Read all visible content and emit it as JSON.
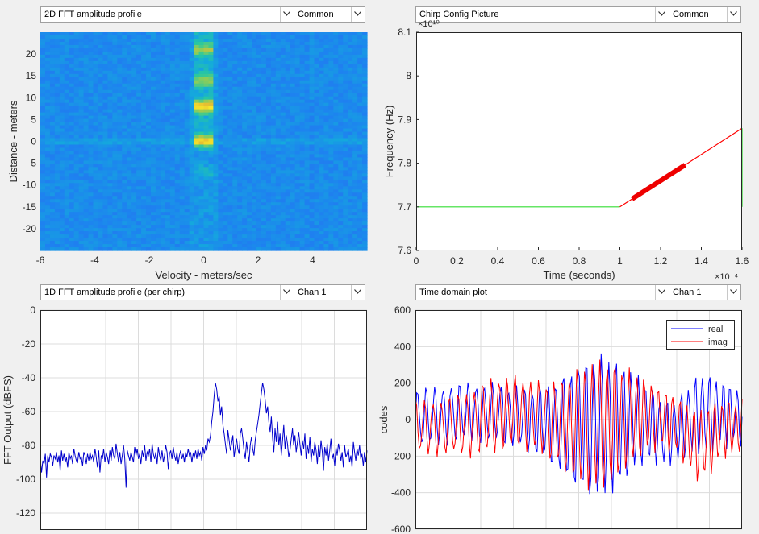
{
  "dropdowns": {
    "tl_main": "2D FFT amplitude profile",
    "tl_sub": "Common",
    "tr_main": "Chirp Config Picture",
    "tr_sub": "Common",
    "bl_main": "1D FFT amplitude profile (per chirp)",
    "bl_sub": "Chan 1",
    "br_main": "Time domain plot",
    "br_sub": "Chan 1"
  },
  "icons": {
    "dropdown_arrow": "chevron-down-icon"
  },
  "chart_data": [
    {
      "type": "heatmap",
      "xlabel": "Velocity - meters/sec",
      "ylabel": "Distance - meters",
      "xlim": [
        -6,
        6
      ],
      "ylim": [
        -25,
        25
      ],
      "xticks": [
        -6,
        -4,
        -2,
        0,
        2,
        4
      ],
      "yticks": [
        20,
        15,
        10,
        5,
        0,
        -5,
        -10,
        -15,
        -20
      ],
      "colormap": "parula",
      "peaks": [
        {
          "velocity": 0,
          "distance": 0,
          "level": "high"
        },
        {
          "velocity": 0,
          "distance": 8,
          "level": "high"
        },
        {
          "velocity": 0,
          "distance": 14,
          "level": "medium"
        },
        {
          "velocity": 0,
          "distance": 21,
          "level": "medium"
        },
        {
          "velocity": 0,
          "distance": -7,
          "level": "low"
        }
      ]
    },
    {
      "type": "line",
      "xlabel": "Time (seconds)",
      "ylabel": "Frequency (Hz)",
      "x_exponent": "×10⁻⁴",
      "y_exponent": "×10¹⁰",
      "xlim": [
        0,
        1.6
      ],
      "ylim": [
        7.6,
        8.1
      ],
      "xticks": [
        "0",
        "0.2",
        "0.4",
        "0.6",
        "0.8",
        "1",
        "1.2",
        "1.4",
        "1.6"
      ],
      "yticks": [
        "8.1",
        "8",
        "7.9",
        "7.8",
        "7.7",
        "7.6"
      ],
      "series": [
        {
          "color": "#33dd33",
          "points": [
            [
              0,
              7.7
            ],
            [
              1.0,
              7.7
            ]
          ]
        },
        {
          "color": "#ff0000",
          "points": [
            [
              1.0,
              7.7
            ],
            [
              1.6,
              7.88
            ]
          ]
        },
        {
          "color": "#ee0000",
          "thick": true,
          "points": [
            [
              1.06,
              7.718
            ],
            [
              1.32,
              7.796
            ]
          ]
        },
        {
          "color": "#33dd33",
          "points": [
            [
              1.6,
              7.88
            ],
            [
              1.6,
              7.7
            ]
          ]
        }
      ]
    },
    {
      "type": "line",
      "ylabel": "FFT Output (dBFS)",
      "ylim": [
        -130,
        0
      ],
      "yticks": [
        "0",
        "-20",
        "-40",
        "-60",
        "-80",
        "-100",
        "-120"
      ],
      "series": [
        {
          "color": "#0000cc",
          "values": [
            -88,
            -96,
            -89,
            -91,
            -85,
            -99,
            -86,
            -90,
            -85,
            -87,
            -92,
            -86,
            -88,
            -84,
            -90,
            -86,
            -95,
            -83,
            -89,
            -85,
            -90,
            -87,
            -93,
            -84,
            -88,
            -86,
            -91,
            -82,
            -86,
            -89,
            -90,
            -84,
            -88,
            -87,
            -92,
            -84,
            -86,
            -91,
            -85,
            -89,
            -84,
            -88,
            -86,
            -90,
            -82,
            -87,
            -93,
            -83,
            -96,
            -86,
            -88,
            -82,
            -90,
            -84,
            -87,
            -91,
            -83,
            -89,
            -81,
            -86,
            -88,
            -79,
            -85,
            -90,
            -84,
            -91,
            -86,
            -80,
            -88,
            -105,
            -83,
            -86,
            -89,
            -84,
            -87,
            -90,
            -81,
            -86,
            -82,
            -88,
            -85,
            -91,
            -83,
            -87,
            -80,
            -89,
            -84,
            -86,
            -82,
            -90,
            -79,
            -85,
            -88,
            -84,
            -91,
            -81,
            -86,
            -89,
            -83,
            -90,
            -86,
            -80,
            -84,
            -94,
            -85,
            -83,
            -88,
            -81,
            -86,
            -89,
            -84,
            -91,
            -86,
            -83,
            -88,
            -85,
            -90,
            -84,
            -87,
            -82,
            -86,
            -84,
            -90,
            -85,
            -87,
            -83,
            -88,
            -82,
            -86,
            -84,
            -89,
            -81,
            -85,
            -80,
            -83,
            -76,
            -78,
            -74,
            -66,
            -60,
            -50,
            -43,
            -47,
            -54,
            -51,
            -62,
            -57,
            -68,
            -73,
            -79,
            -85,
            -71,
            -77,
            -83,
            -79,
            -74,
            -87,
            -81,
            -76,
            -82,
            -85,
            -73,
            -70,
            -76,
            -83,
            -88,
            -78,
            -84,
            -90,
            -80,
            -75,
            -82,
            -86,
            -77,
            -72,
            -67,
            -62,
            -55,
            -49,
            -43,
            -47,
            -53,
            -61,
            -57,
            -66,
            -72,
            -63,
            -76,
            -84,
            -70,
            -78,
            -66,
            -80,
            -73,
            -86,
            -77,
            -68,
            -82,
            -74,
            -79,
            -87,
            -83,
            -76,
            -70,
            -80,
            -74,
            -84,
            -78,
            -72,
            -79,
            -86,
            -77,
            -82,
            -73,
            -88,
            -80,
            -85,
            -75,
            -90,
            -82,
            -86,
            -78,
            -83,
            -91,
            -80,
            -87,
            -77,
            -84,
            -95,
            -81,
            -86,
            -79,
            -89,
            -83,
            -76,
            -88,
            -85,
            -92,
            -81,
            -86,
            -79,
            -83,
            -89,
            -84,
            -93,
            -80,
            -87,
            -85,
            -82,
            -90,
            -86,
            -93,
            -78,
            -84,
            -89,
            -82,
            -86,
            -80,
            -88,
            -85,
            -92,
            -84,
            -90,
            -83
          ]
        }
      ]
    },
    {
      "type": "line",
      "ylabel": "codes",
      "ylim": [
        -600,
        600
      ],
      "yticks": [
        "600",
        "400",
        "200",
        "0",
        "-200",
        "-400",
        "-600"
      ],
      "legend_position": "top-right",
      "series": [
        {
          "name": "real",
          "color": "#0000ff"
        },
        {
          "name": "imag",
          "color": "#ff0000"
        }
      ]
    }
  ]
}
